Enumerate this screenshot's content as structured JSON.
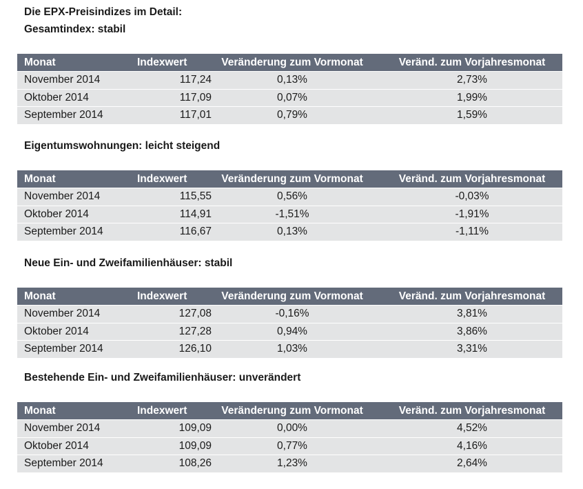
{
  "title_line1": "Die EPX-Preisindizes im Detail:",
  "columns": {
    "month": "Monat",
    "index": "Indexwert",
    "mom": "Veränderung zum Vormonat",
    "yoy": "Veränd. zum Vorjahresmonat"
  },
  "sections": [
    {
      "heading": "Gesamtindex: stabil",
      "rows": [
        {
          "month": "November 2014",
          "index": "117,24",
          "mom": "0,13%",
          "yoy": "2,73%"
        },
        {
          "month": "Oktober 2014",
          "index": "117,09",
          "mom": "0,07%",
          "yoy": "1,99%"
        },
        {
          "month": "September 2014",
          "index": "117,01",
          "mom": "0,79%",
          "yoy": "1,59%"
        }
      ]
    },
    {
      "heading": "Eigentumswohnungen: leicht steigend",
      "rows": [
        {
          "month": "November 2014",
          "index": "115,55",
          "mom": "0,56%",
          "yoy": "-0,03%"
        },
        {
          "month": "Oktober 2014",
          "index": "114,91",
          "mom": "-1,51%",
          "yoy": "-1,91%"
        },
        {
          "month": "September 2014",
          "index": "116,67",
          "mom": "0,13%",
          "yoy": "-1,11%"
        }
      ]
    },
    {
      "heading": "Neue Ein- und Zweifamilienhäuser: stabil",
      "rows": [
        {
          "month": "November 2014",
          "index": "127,08",
          "mom": "-0,16%",
          "yoy": "3,81%"
        },
        {
          "month": "Oktober 2014",
          "index": "127,28",
          "mom": "0,94%",
          "yoy": "3,86%"
        },
        {
          "month": "September 2014",
          "index": "126,10",
          "mom": "1,03%",
          "yoy": "3,31%"
        }
      ]
    },
    {
      "heading": "Bestehende Ein- und Zweifamilienhäuser: unverändert",
      "rows": [
        {
          "month": "November 2014",
          "index": "109,09",
          "mom": "0,00%",
          "yoy": "4,52%"
        },
        {
          "month": "Oktober 2014",
          "index": "109,09",
          "mom": "0,77%",
          "yoy": "4,16%"
        },
        {
          "month": "September 2014",
          "index": "108,26",
          "mom": "1,23%",
          "yoy": "2,64%"
        }
      ]
    }
  ]
}
